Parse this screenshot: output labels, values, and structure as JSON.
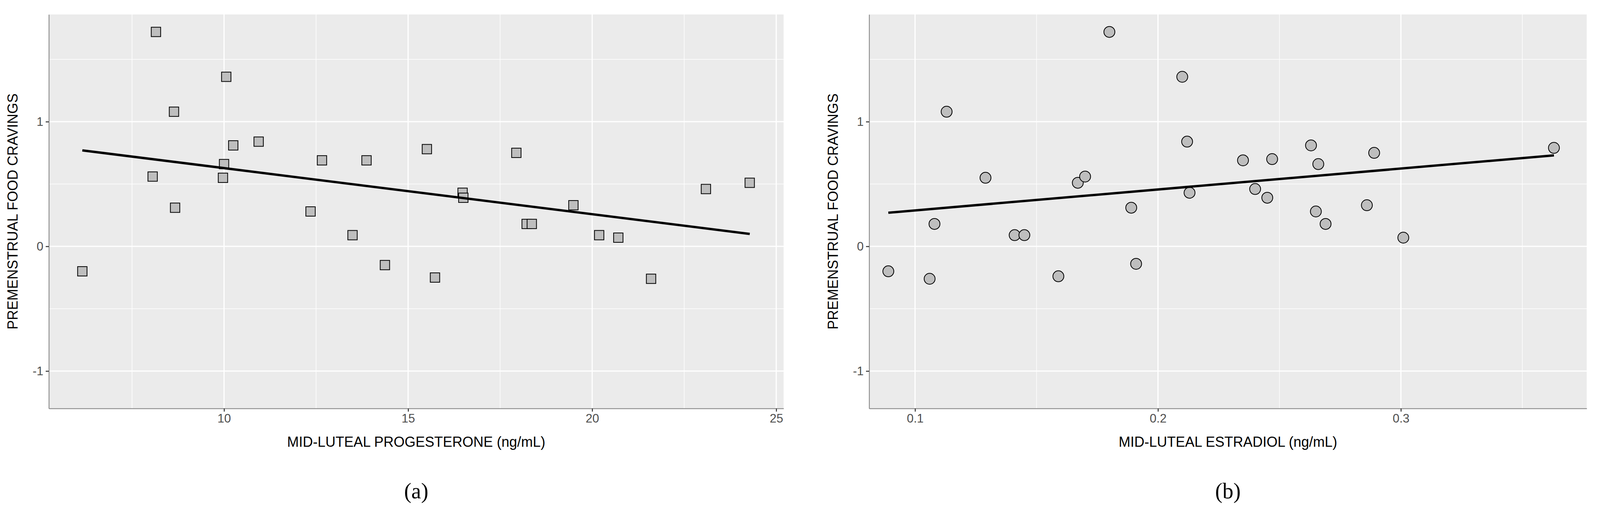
{
  "chart_data": [
    {
      "type": "scatter",
      "title": "(a)",
      "x_label": "MID-LUTEAL PROGESTERONE (ng/mL)",
      "y_label": "PREMENSTRUAL FOOD CRAVINGS",
      "marker": "square",
      "color": "#bebebe",
      "grid": true,
      "x": [
        6.15,
        8.15,
        8.06,
        8.64,
        8.67,
        10.06,
        10.0,
        9.97,
        10.25,
        10.94,
        12.35,
        12.66,
        13.49,
        13.87,
        14.37,
        15.51,
        15.73,
        16.48,
        16.5,
        17.94,
        18.22,
        18.36,
        19.49,
        20.19,
        20.71,
        21.6,
        23.09,
        24.28
      ],
      "values": [
        -0.2,
        1.72,
        0.56,
        1.08,
        0.31,
        1.36,
        0.66,
        0.55,
        0.81,
        0.84,
        0.28,
        0.69,
        0.09,
        0.69,
        -0.15,
        0.78,
        -0.25,
        0.43,
        0.39,
        0.75,
        0.18,
        0.18,
        0.33,
        0.09,
        0.07,
        -0.26,
        0.46,
        0.51
      ],
      "trend": {
        "x": [
          6.15,
          24.28
        ],
        "values": [
          0.77,
          0.1
        ]
      },
      "xlim": [
        5.24,
        25.2
      ],
      "xticks": [
        10,
        15,
        20,
        25
      ],
      "ylim": [
        -1.3,
        1.86
      ],
      "yticks": [
        -1,
        0,
        1
      ]
    },
    {
      "type": "scatter",
      "title": "(b)",
      "x_label": "MID-LUTEAL ESTRADIOL (ng/mL)",
      "y_label": "PREMENSTRUAL FOOD CRAVINGS",
      "marker": "circle",
      "color": "#bebebe",
      "grid": true,
      "x": [
        0.089,
        0.106,
        0.108,
        0.113,
        0.129,
        0.141,
        0.145,
        0.159,
        0.167,
        0.17,
        0.18,
        0.189,
        0.191,
        0.21,
        0.212,
        0.213,
        0.235,
        0.24,
        0.245,
        0.247,
        0.263,
        0.265,
        0.266,
        0.269,
        0.286,
        0.289,
        0.301,
        0.363
      ],
      "values": [
        -0.2,
        -0.26,
        0.18,
        1.08,
        0.55,
        0.09,
        0.09,
        -0.24,
        0.51,
        0.56,
        1.72,
        0.31,
        -0.14,
        1.36,
        0.84,
        0.43,
        0.69,
        0.46,
        0.39,
        0.7,
        0.81,
        0.28,
        0.66,
        0.18,
        0.33,
        0.75,
        0.07,
        0.79
      ],
      "trend": {
        "x": [
          0.089,
          0.363
        ],
        "values": [
          0.27,
          0.73
        ]
      },
      "xlim": [
        0.0811,
        0.3765
      ],
      "xticks": [
        0.1,
        0.2,
        0.3
      ],
      "ylim": [
        -1.3,
        1.86
      ],
      "yticks": [
        -1,
        0,
        1
      ]
    }
  ]
}
